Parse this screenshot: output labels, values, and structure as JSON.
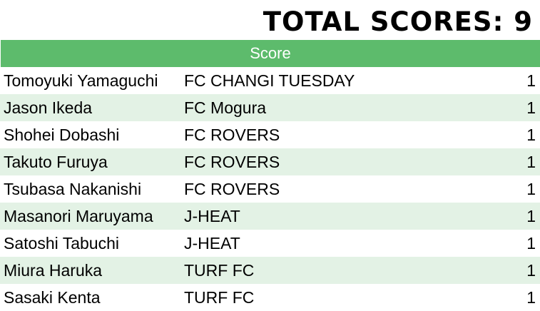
{
  "title": "TOTAL SCORES: 9",
  "table": {
    "header": "Score",
    "rows": [
      {
        "player": "Tomoyuki Yamaguchi",
        "team": "FC CHANGI TUESDAY",
        "score": "1"
      },
      {
        "player": "Jason Ikeda",
        "team": "FC Mogura",
        "score": "1"
      },
      {
        "player": "Shohei Dobashi",
        "team": "FC ROVERS",
        "score": "1"
      },
      {
        "player": "Takuto Furuya",
        "team": "FC ROVERS",
        "score": "1"
      },
      {
        "player": "Tsubasa Nakanishi",
        "team": "FC ROVERS",
        "score": "1"
      },
      {
        "player": "Masanori Maruyama",
        "team": "J-HEAT",
        "score": "1"
      },
      {
        "player": "Satoshi Tabuchi",
        "team": "J-HEAT",
        "score": "1"
      },
      {
        "player": "Miura Haruka",
        "team": "TURF FC",
        "score": "1"
      },
      {
        "player": "Sasaki Kenta",
        "team": "TURF FC",
        "score": "1"
      }
    ]
  },
  "colors": {
    "header_bg": "#5dbb6c",
    "alt_row_bg": "#e3f2e5"
  }
}
